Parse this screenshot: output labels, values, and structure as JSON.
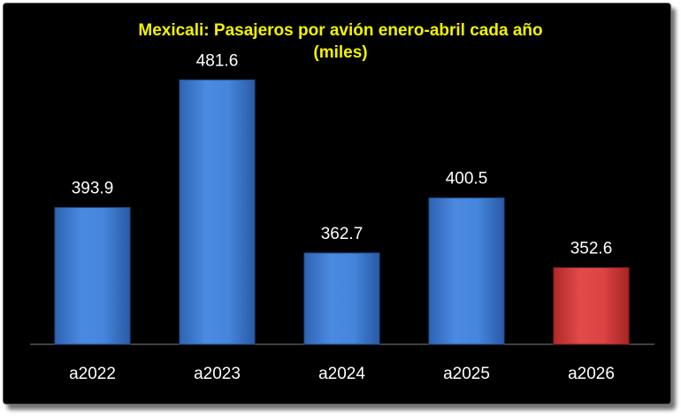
{
  "chart_data": {
    "type": "bar",
    "title": "Mexicali: Pasajeros por avión enero-abril cada año",
    "subtitle": "(miles)",
    "categories": [
      "a2022",
      "a2023",
      "a2024",
      "a2025",
      "a2026"
    ],
    "values": [
      393.9,
      481.6,
      362.7,
      400.5,
      352.6
    ],
    "value_labels": [
      "393.9",
      "481.6",
      "362.7",
      "400.5",
      "352.6"
    ],
    "xlabel": "",
    "ylabel": "",
    "ylim": [
      300,
      500
    ],
    "grid": false,
    "legend": "none",
    "colors": {
      "background": "#000000",
      "bar": "#3f7fd6",
      "highlight_bar": "#d63b3b",
      "title": "#f2f200",
      "labels": "#ffffff",
      "axis": "#808080"
    },
    "highlight_index": 4
  }
}
